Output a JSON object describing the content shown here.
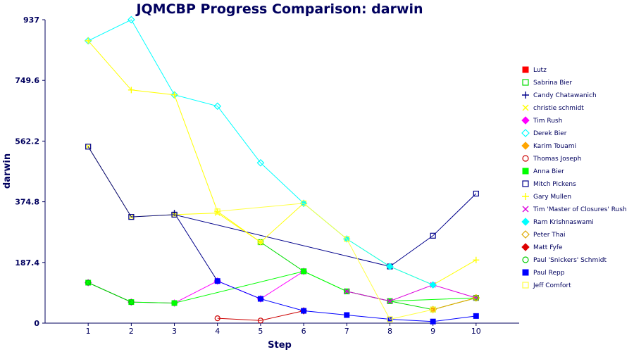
{
  "chart_data": {
    "type": "line",
    "title": "JQMCBP Progress Comparison: darwin",
    "xlabel": "Step",
    "ylabel": "darwin",
    "x": [
      1,
      2,
      3,
      4,
      5,
      6,
      7,
      8,
      9,
      10
    ],
    "xlim": [
      0,
      11
    ],
    "ylim": [
      0,
      937
    ],
    "yticks": [
      "0",
      "187.4",
      "374.8",
      "562.2",
      "749.6",
      "937"
    ],
    "legend_position": "right",
    "grid": false,
    "series": [
      {
        "name": "Lutz",
        "color": "#ff0000",
        "marker": "square-filled",
        "points": []
      },
      {
        "name": "Sabrina Bier",
        "color": "#00dd00",
        "marker": "square-open",
        "points": [
          [
            5,
            250
          ],
          [
            6,
            160
          ],
          [
            7,
            98
          ],
          [
            8,
            68
          ],
          [
            9,
            42
          ],
          [
            10,
            78
          ]
        ]
      },
      {
        "name": "Candy Chatawanich",
        "color": "#00008b",
        "marker": "plus",
        "points": [
          [
            3,
            340
          ],
          [
            4,
            130
          ]
        ]
      },
      {
        "name": "christie schmidt",
        "color": "#ffff00",
        "marker": "x",
        "points": [
          [
            1,
            545
          ],
          [
            2,
            328
          ],
          [
            3,
            335
          ],
          [
            4,
            340
          ],
          [
            5,
            250
          ]
        ]
      },
      {
        "name": "Tim Rush",
        "color": "#ff00ff",
        "marker": "diamond-filled",
        "points": [
          [
            1,
            125
          ],
          [
            2,
            65
          ],
          [
            3,
            62
          ],
          [
            4,
            130
          ],
          [
            5,
            75
          ],
          [
            6,
            160
          ]
        ]
      },
      {
        "name": "Derek Bier",
        "color": "#00ffff",
        "marker": "diamond-open",
        "points": [
          [
            1,
            872
          ],
          [
            2,
            937
          ],
          [
            3,
            705
          ],
          [
            4,
            670
          ],
          [
            5,
            495
          ],
          [
            6,
            370
          ]
        ]
      },
      {
        "name": "Karim Touami",
        "color": "#ffa500",
        "marker": "diamond-filled",
        "points": [
          [
            9,
            42
          ],
          [
            10,
            78
          ]
        ]
      },
      {
        "name": "Thomas Joseph",
        "color": "#cc0000",
        "marker": "circle-open",
        "points": [
          [
            4,
            15
          ],
          [
            5,
            8
          ],
          [
            6,
            38
          ]
        ]
      },
      {
        "name": "Anna Bier",
        "color": "#00ff00",
        "marker": "square-filled",
        "points": [
          [
            1,
            125
          ],
          [
            2,
            65
          ],
          [
            3,
            62
          ],
          [
            6,
            160
          ],
          [
            7,
            98
          ],
          [
            8,
            68
          ],
          [
            10,
            78
          ]
        ]
      },
      {
        "name": "Mitch Pickens",
        "color": "#00008b",
        "marker": "square-open",
        "points": [
          [
            1,
            545
          ],
          [
            2,
            328
          ],
          [
            3,
            335
          ],
          [
            8,
            175
          ],
          [
            9,
            270
          ],
          [
            10,
            400
          ]
        ]
      },
      {
        "name": "Gary Mullen",
        "color": "#ffff00",
        "marker": "plus",
        "points": [
          [
            1,
            872
          ],
          [
            2,
            720
          ],
          [
            3,
            705
          ],
          [
            4,
            345
          ],
          [
            5,
            250
          ],
          [
            6,
            370
          ],
          [
            7,
            260
          ],
          [
            8,
            175
          ],
          [
            9,
            118
          ],
          [
            10,
            195
          ]
        ]
      },
      {
        "name": "Tim 'Master of Closures' Rush",
        "color": "#dd00dd",
        "marker": "x",
        "points": [
          [
            7,
            98
          ],
          [
            8,
            68
          ],
          [
            9,
            118
          ],
          [
            10,
            78
          ]
        ]
      },
      {
        "name": "Ram Krishnaswami",
        "color": "#00ffff",
        "marker": "diamond-filled",
        "points": [
          [
            6,
            370
          ],
          [
            7,
            260
          ],
          [
            8,
            175
          ],
          [
            9,
            118
          ]
        ]
      },
      {
        "name": "Peter Thai",
        "color": "#ddaa00",
        "marker": "diamond-open",
        "points": [
          [
            9,
            42
          ],
          [
            10,
            78
          ]
        ]
      },
      {
        "name": "Matt Fyfe",
        "color": "#dd0000",
        "marker": "diamond-filled",
        "points": [
          [
            6,
            38
          ]
        ]
      },
      {
        "name": "Paul 'Snickers' Schmidt",
        "color": "#00cc00",
        "marker": "circle-open",
        "points": [
          [
            1,
            125
          ],
          [
            2,
            65
          ]
        ]
      },
      {
        "name": "Paul Repp",
        "color": "#0000ff",
        "marker": "square-filled",
        "points": [
          [
            4,
            130
          ],
          [
            5,
            75
          ],
          [
            6,
            38
          ],
          [
            7,
            25
          ],
          [
            8,
            12
          ],
          [
            9,
            5
          ],
          [
            10,
            22
          ]
        ]
      },
      {
        "name": "Jeff Comfort",
        "color": "#ffff44",
        "marker": "square-open",
        "points": [
          [
            4,
            345
          ],
          [
            6,
            370
          ],
          [
            7,
            260
          ],
          [
            8,
            12
          ],
          [
            9,
            42
          ]
        ]
      }
    ]
  }
}
